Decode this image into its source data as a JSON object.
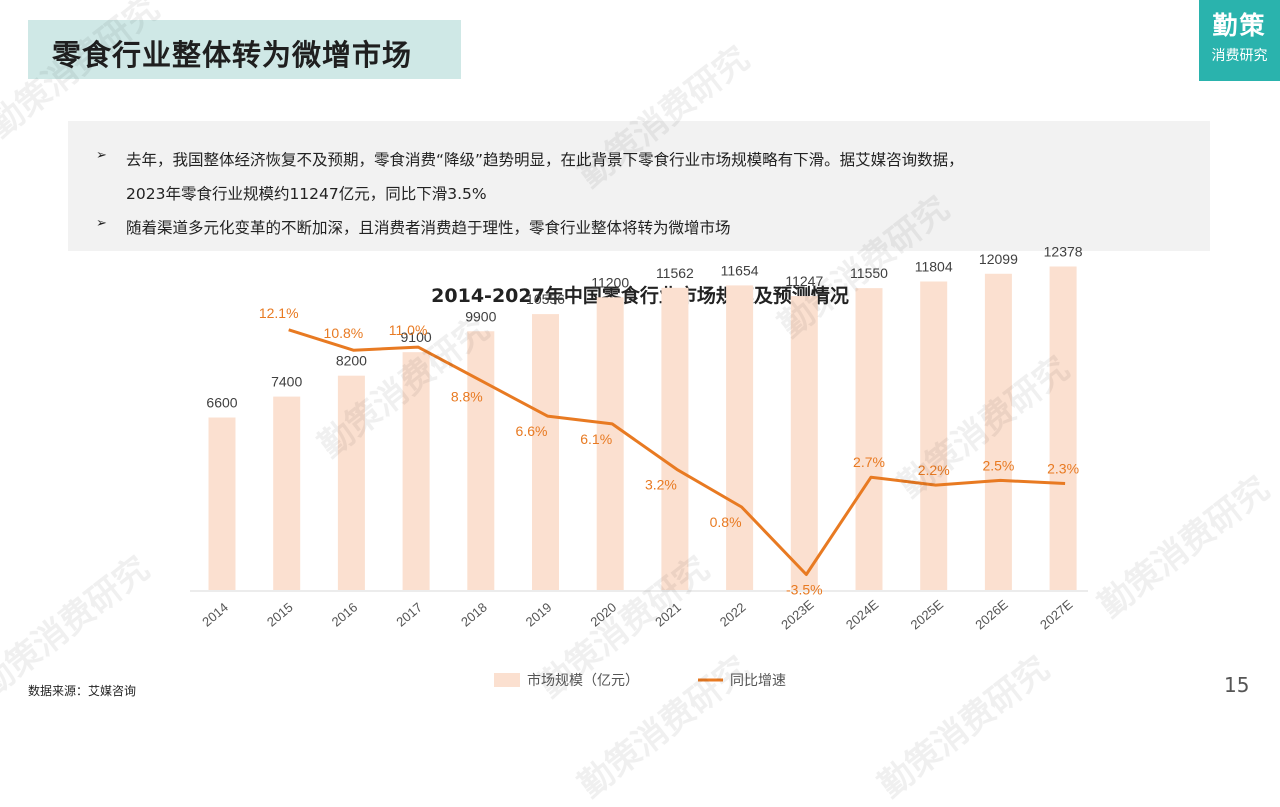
{
  "header": {
    "title": "零食行业整体转为微增市场",
    "logo_main": "勤策",
    "logo_sub": "消费研究"
  },
  "bullets": [
    {
      "marker": "➢",
      "lines": [
        "去年，我国整体经济恢复不及预期，零食消费“降级”趋势明显，在此背景下零食行业市场规模略有下滑。据艾媒咨询数据，",
        "2023年零食行业规模约11247亿元，同比下滑3.5%"
      ]
    },
    {
      "marker": "➢",
      "lines": [
        "随着渠道多元化变革的不断加深，且消费者消费趋于理性，零食行业整体将转为微增市场"
      ]
    }
  ],
  "footer": {
    "source": "数据来源：艾媒咨询",
    "page_number": "15"
  },
  "watermark_text": "勤策消费研究",
  "colors": {
    "bar": "#fbe0d0",
    "line": "#e87a22",
    "accent": "#2ab3ad",
    "title_bg": "#cfe8e6"
  },
  "chart_data": {
    "type": "bar+line",
    "title": "2014-2027年中国零食行业市场规模及预测情况",
    "categories": [
      "2014",
      "2015",
      "2016",
      "2017",
      "2018",
      "2019",
      "2020",
      "2021",
      "2022",
      "2023E",
      "2024E",
      "2025E",
      "2026E",
      "2027E"
    ],
    "series": [
      {
        "name": "市场规模（亿元）",
        "type": "bar",
        "values": [
          6600,
          7400,
          8200,
          9100,
          9900,
          10556,
          11200,
          11562,
          11654,
          11247,
          11550,
          11804,
          12099,
          12378
        ],
        "labels": [
          "6600",
          "7400",
          "8200",
          "9100",
          "9900",
          "10556",
          "11200",
          "11562",
          "11654",
          "11247",
          "11550",
          "11804",
          "12099",
          "12378"
        ]
      },
      {
        "name": "同比增速",
        "type": "line",
        "values": [
          null,
          12.1,
          10.8,
          11.0,
          8.8,
          6.6,
          6.1,
          3.2,
          0.8,
          -3.5,
          2.7,
          2.2,
          2.5,
          2.3
        ],
        "labels": [
          "",
          "12.1%",
          "10.8%",
          "11.0%",
          "8.8%",
          "6.6%",
          "6.1%",
          "3.2%",
          "0.8%",
          "-3.5%",
          "2.7%",
          "2.2%",
          "2.5%",
          "2.3%"
        ]
      }
    ],
    "bar_ylim": [
      0,
      13200
    ],
    "line_ylim": [
      -5,
      14
    ],
    "grid": false,
    "legend_position": "bottom"
  }
}
